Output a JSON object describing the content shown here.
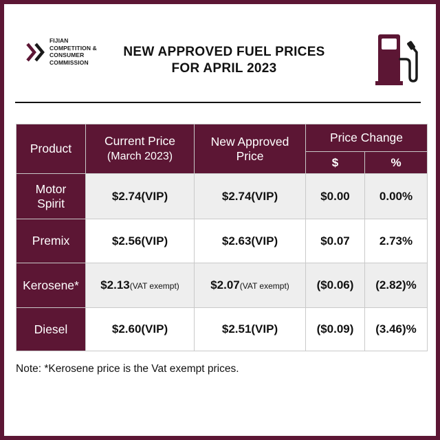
{
  "logo": {
    "line1": "FIJIAN",
    "line2": "COMPETITION &",
    "line3": "CONSUMER",
    "line4": "COMMISSION",
    "icon": "chevrons-icon",
    "color": "#5c1634"
  },
  "title": {
    "line1": "NEW APPROVED FUEL PRICES",
    "line2": "FOR APRIL 2023"
  },
  "pump_icon": "fuel-pump-icon",
  "accent_color": "#5c1634",
  "table": {
    "headers": {
      "product": "Product",
      "current_line1": "Current Price",
      "current_line2": "(March 2023)",
      "new_line1": "New Approved",
      "new_line2": "Price",
      "change": "Price Change",
      "change_dollar": "$",
      "change_percent": "%"
    },
    "rows": [
      {
        "product_line1": "Motor",
        "product_line2": "Spirit",
        "current": "$2.74(VIP)",
        "current_note": "",
        "new": "$2.74(VIP)",
        "new_note": "",
        "change_dollar": "$0.00",
        "change_percent": "0.00%"
      },
      {
        "product_line1": "Premix",
        "product_line2": "",
        "current": "$2.56(VIP)",
        "current_note": "",
        "new": "$2.63(VIP)",
        "new_note": "",
        "change_dollar": "$0.07",
        "change_percent": "2.73%"
      },
      {
        "product_line1": "Kerosene*",
        "product_line2": "",
        "current": "$2.13",
        "current_note": "(VAT exempt)",
        "new": "$2.07",
        "new_note": "(VAT exempt)",
        "change_dollar": "($0.06)",
        "change_percent": "(2.82)%"
      },
      {
        "product_line1": "Diesel",
        "product_line2": "",
        "current": "$2.60(VIP)",
        "current_note": "",
        "new": "$2.51(VIP)",
        "new_note": "",
        "change_dollar": "($0.09)",
        "change_percent": "(3.46)%"
      }
    ]
  },
  "note": "Note: *Kerosene price is the Vat exempt prices."
}
